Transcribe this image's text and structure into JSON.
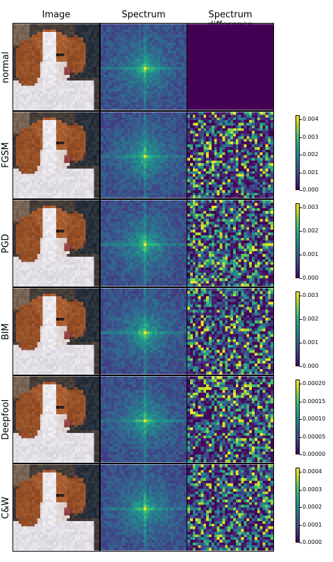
{
  "columns": [
    "Image",
    "Spectrum",
    "Spectrum difference"
  ],
  "rows": [
    {
      "label": "normal",
      "colorbar_ticks": []
    },
    {
      "label": "FGSM",
      "colorbar_ticks": [
        "0.004",
        "0.003",
        "0.002",
        "0.001",
        "0.000"
      ]
    },
    {
      "label": "PGD",
      "colorbar_ticks": [
        "0.003",
        "0.002",
        "0.001",
        "0.000"
      ]
    },
    {
      "label": "BIM",
      "colorbar_ticks": [
        "0.003",
        "0.002",
        "0.001",
        "0.000"
      ]
    },
    {
      "label": "Deepfool",
      "colorbar_ticks": [
        "0.00020",
        "0.00015",
        "0.00010",
        "0.00005",
        "0.00000"
      ]
    },
    {
      "label": "C&W",
      "colorbar_ticks": [
        "0.0004",
        "0.0003",
        "0.0002",
        "0.0001",
        "0.0000"
      ]
    }
  ],
  "colormap": "viridis",
  "colors": {
    "low": "#440154",
    "mid": "#21918c",
    "high": "#fde725"
  }
}
